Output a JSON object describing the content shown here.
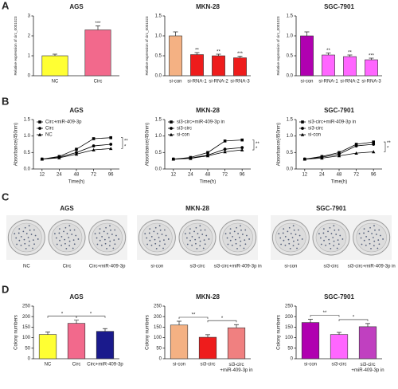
{
  "panel_labels": [
    "A",
    "B",
    "C",
    "D"
  ],
  "chart_data": [
    {
      "type": "bar",
      "title": "AGS",
      "y_label": "Relative expression of circ_0001023",
      "categories": [
        "NC",
        "Circ"
      ],
      "values": [
        1.0,
        2.3
      ],
      "errors": [
        0.08,
        0.2
      ],
      "colors": [
        "#ffff33",
        "#f2698c"
      ],
      "significance": [
        null,
        "***"
      ],
      "ylim": [
        0,
        3
      ],
      "yticks": [
        0,
        1,
        2,
        3
      ]
    },
    {
      "type": "bar",
      "title": "MKN-28",
      "y_label": "Relative expression of circ_0001023",
      "categories": [
        "si-con",
        "si-RNA-1",
        "si-RNA-2",
        "si-RNA-3"
      ],
      "values": [
        1.0,
        0.53,
        0.5,
        0.45
      ],
      "errors": [
        0.1,
        0.05,
        0.04,
        0.04
      ],
      "colors": [
        "#f4b183",
        "#ee1c1c",
        "#ee1c1c",
        "#ee1c1c"
      ],
      "significance": [
        null,
        "**",
        "**",
        "***"
      ],
      "ylim": [
        0,
        1.5
      ],
      "yticks": [
        {
          "value": 0,
          "label": "0.0"
        },
        0.5,
        {
          "value": 1,
          "label": "1.0"
        },
        1.5
      ]
    },
    {
      "type": "bar",
      "title": "SGC-7901",
      "y_label": "Relative expression of circ_0001023",
      "categories": [
        "si-con",
        "si-RNA-1",
        "si-RNA-2",
        "si-RNA-3"
      ],
      "values": [
        1.0,
        0.52,
        0.48,
        0.4
      ],
      "errors": [
        0.1,
        0.05,
        0.04,
        0.04
      ],
      "colors": [
        "#b000b0",
        "#ff66ff",
        "#ff66ff",
        "#ff66ff"
      ],
      "significance": [
        null,
        "**",
        "**",
        "***"
      ],
      "ylim": [
        0,
        1.5
      ],
      "yticks": [
        {
          "value": 0,
          "label": "0.0"
        },
        0.5,
        {
          "value": 1,
          "label": "1.0"
        },
        1.5
      ]
    },
    {
      "type": "line",
      "title": "AGS",
      "y_label": "Absorbance(450nm)",
      "x_label": "Time(h)",
      "categories": [
        "12",
        "24",
        "48",
        "72",
        "96"
      ],
      "series": [
        {
          "name": "Circ+miR-409-3p",
          "color": "#000000",
          "marker": "square",
          "values": [
            0.3,
            0.38,
            0.6,
            0.92,
            0.95
          ]
        },
        {
          "name": "Circ",
          "color": "#000000",
          "marker": "circle",
          "values": [
            0.3,
            0.36,
            0.5,
            0.7,
            0.75
          ]
        },
        {
          "name": "NC",
          "color": "#000000",
          "marker": "triangle",
          "values": [
            0.3,
            0.34,
            0.45,
            0.58,
            0.62
          ]
        }
      ],
      "significance": [
        "**",
        "*"
      ],
      "ylim": [
        0,
        1.5
      ],
      "yticks": [
        {
          "value": 0,
          "label": "0.0"
        },
        0.5,
        {
          "value": 1,
          "label": "1.0"
        },
        1.5
      ]
    },
    {
      "type": "line",
      "title": "MKN-28",
      "y_label": "Absorbance(450nm)",
      "x_label": "Time(h)",
      "categories": [
        "12",
        "24",
        "48",
        "72",
        "96"
      ],
      "series": [
        {
          "name": "si3-circ+miR-409-3p in",
          "color": "#000000",
          "marker": "square",
          "values": [
            0.3,
            0.35,
            0.5,
            0.85,
            0.88
          ]
        },
        {
          "name": "si3-circ",
          "color": "#000000",
          "marker": "circle",
          "values": [
            0.3,
            0.33,
            0.42,
            0.6,
            0.65
          ]
        },
        {
          "name": "si-con",
          "color": "#000000",
          "marker": "triangle",
          "values": [
            0.3,
            0.32,
            0.4,
            0.52,
            0.58
          ]
        }
      ],
      "significance": [
        "**",
        "*"
      ],
      "ylim": [
        0,
        1.5
      ],
      "yticks": [
        {
          "value": 0,
          "label": "0.0"
        },
        0.5,
        {
          "value": 1,
          "label": "1.0"
        },
        1.5
      ]
    },
    {
      "type": "line",
      "title": "SGC-7901",
      "y_label": "Absorbance(450nm)",
      "x_label": "Time(h)",
      "categories": [
        "12",
        "24",
        "48",
        "72",
        "96"
      ],
      "series": [
        {
          "name": "si3-circ+miR-409-3p in",
          "color": "#000000",
          "marker": "square",
          "values": [
            0.3,
            0.38,
            0.5,
            0.75,
            0.82
          ]
        },
        {
          "name": "si3-circ",
          "color": "#000000",
          "marker": "circle",
          "values": [
            0.3,
            0.36,
            0.45,
            0.7,
            0.75
          ]
        },
        {
          "name": "si-con",
          "color": "#000000",
          "marker": "triangle",
          "values": [
            0.3,
            0.33,
            0.4,
            0.48,
            0.52
          ]
        }
      ],
      "significance": [
        "**",
        "*"
      ],
      "ylim": [
        0,
        1.5
      ],
      "yticks": [
        {
          "value": 0,
          "label": "0.0"
        },
        0.5,
        {
          "value": 1,
          "label": "1.0"
        },
        1.5
      ]
    },
    {
      "type": "bar",
      "title": "AGS",
      "y_label": "Colony numbers",
      "categories": [
        "NC",
        "Circ",
        "Circ+miR-409-3p"
      ],
      "values": [
        115,
        168,
        130
      ],
      "errors": [
        12,
        15,
        13
      ],
      "colors": [
        "#ffff33",
        "#f2698c",
        "#1a1a8c"
      ],
      "bracket_labels": [
        "*",
        "*"
      ],
      "ylim": [
        0,
        250
      ],
      "yticks": [
        0,
        50,
        100,
        150,
        200,
        250
      ]
    },
    {
      "type": "bar",
      "title": "MKN-28",
      "y_label": "Colony numbers",
      "categories": [
        "si-con",
        "si3-circ",
        "si3-circ\n+miR-409-3p in"
      ],
      "values": [
        160,
        102,
        147
      ],
      "errors": [
        18,
        12,
        15
      ],
      "colors": [
        "#f4b183",
        "#ee1c1c",
        "#f08080"
      ],
      "bracket_labels": [
        "**",
        "*"
      ],
      "ylim": [
        0,
        250
      ],
      "yticks": [
        0,
        50,
        100,
        150,
        200,
        250
      ]
    },
    {
      "type": "bar",
      "title": "SGC-7901",
      "y_label": "Colony numbers",
      "categories": [
        "si-con",
        "si3-circ",
        "si3-circ\n+miR-409-3p in"
      ],
      "values": [
        172,
        115,
        152
      ],
      "errors": [
        15,
        10,
        15
      ],
      "colors": [
        "#b000b0",
        "#ff66ff",
        "#c040c0"
      ],
      "bracket_labels": [
        "**",
        "*"
      ],
      "ylim": [
        0,
        250
      ],
      "yticks": [
        0,
        50,
        100,
        150,
        200,
        250
      ]
    }
  ],
  "panel_c": {
    "groups": [
      {
        "title": "AGS",
        "labels": [
          "NC",
          "Circ",
          "Circ+miR-409-3p"
        ]
      },
      {
        "title": "MKN-28",
        "labels": [
          "si-con",
          "si3-circ",
          "si3-circ+miR-409-3p in"
        ]
      },
      {
        "title": "SGC-7901",
        "labels": [
          "si-con",
          "si3-circ",
          "si3-circ+miR-409-3p in"
        ]
      }
    ]
  }
}
